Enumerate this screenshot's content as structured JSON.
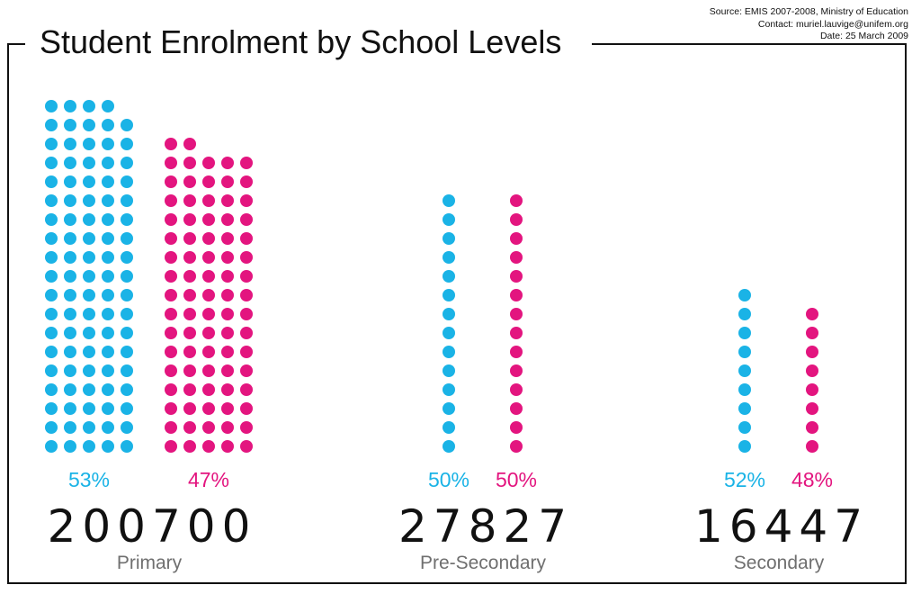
{
  "header": {
    "title": "Student Enrolment by School Levels",
    "source_lines": [
      "Source: EMIS 2007-2008, Ministry of Education",
      "Contact: muriel.lauvige@unifem.org",
      "Date: 25 March 2009"
    ]
  },
  "colors": {
    "boys": "#1ab3e6",
    "girls": "#e3157f",
    "total": "#111111",
    "label": "#6f6f6f"
  },
  "chart_data": {
    "type": "pictogram",
    "title": "Student Enrolment by School Levels",
    "levels": [
      {
        "name": "Primary",
        "total": "200700",
        "boys": {
          "percent": "53%",
          "dots": 94
        },
        "girls": {
          "percent": "47%",
          "dots": 82
        }
      },
      {
        "name": "Pre-Secondary",
        "total": "27827",
        "boys": {
          "percent": "50%",
          "dots": 14
        },
        "girls": {
          "percent": "50%",
          "dots": 14
        }
      },
      {
        "name": "Secondary",
        "total": "16447",
        "boys": {
          "percent": "52%",
          "dots": 9
        },
        "girls": {
          "percent": "48%",
          "dots": 8
        }
      }
    ]
  }
}
